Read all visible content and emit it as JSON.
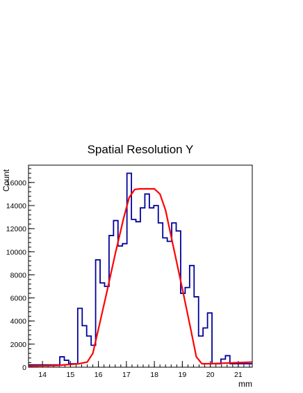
{
  "chart_data": {
    "type": "histogram",
    "title": "Spatial Resolution Y",
    "xlabel": "mm",
    "ylabel": "Count",
    "xlim": [
      13.5,
      21.5
    ],
    "ylim": [
      0,
      17500
    ],
    "xticks": [
      14,
      15,
      16,
      17,
      18,
      19,
      20,
      21
    ],
    "yticks": [
      0,
      2000,
      4000,
      6000,
      8000,
      10000,
      12000,
      14000,
      16000
    ],
    "grid": false,
    "colors": {
      "histogram": "#000099",
      "fit": "#ff0000"
    },
    "histogram": {
      "bin_width": 0.16,
      "x_start": 13.5,
      "counts": [
        200,
        200,
        200,
        200,
        200,
        200,
        200,
        900,
        600,
        300,
        300,
        5100,
        3600,
        2700,
        1900,
        9300,
        7300,
        7000,
        11400,
        12700,
        10500,
        10700,
        16800,
        12800,
        12600,
        13800,
        15000,
        13800,
        14000,
        12500,
        11200,
        10900,
        12500,
        11800,
        6400,
        6900,
        8800,
        6100,
        2700,
        3400,
        4700,
        300,
        300,
        700,
        1000,
        300,
        300,
        300,
        300,
        300
      ]
    },
    "fit": {
      "name": "fit",
      "x": [
        13.5,
        14.5,
        15.3,
        15.6,
        15.8,
        16.0,
        16.3,
        16.6,
        16.9,
        17.1,
        17.3,
        17.5,
        18.0,
        18.2,
        18.4,
        18.7,
        19.0,
        19.3,
        19.5,
        19.7,
        20.0,
        21.5
      ],
      "y": [
        100,
        150,
        300,
        450,
        1200,
        3300,
        6500,
        9800,
        12900,
        14700,
        15400,
        15450,
        15450,
        15000,
        13600,
        10200,
        6800,
        3300,
        900,
        300,
        300,
        450
      ]
    }
  }
}
